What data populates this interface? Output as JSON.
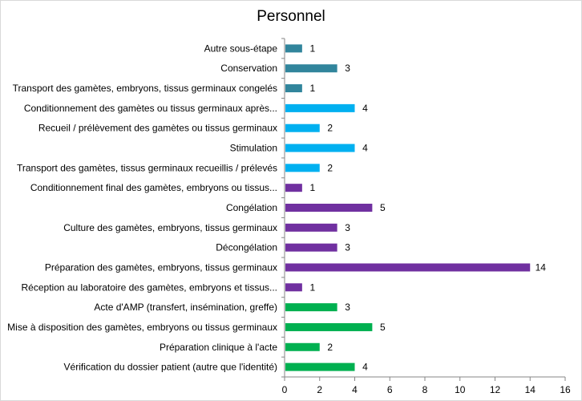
{
  "chart_data": {
    "type": "bar",
    "orientation": "horizontal",
    "title": "Personnel",
    "xlabel": "",
    "ylabel": "",
    "xlim": [
      0,
      16
    ],
    "xticks": [
      0,
      2,
      4,
      6,
      8,
      10,
      12,
      14,
      16
    ],
    "grid": false,
    "legend": "none",
    "categories": [
      "Autre sous-étape",
      "Conservation",
      "Transport des gamètes, embryons, tissus germinaux congelés",
      "Conditionnement des gamètes ou tissus germinaux après...",
      "Recueil / prélèvement des gamètes ou tissus germinaux",
      "Stimulation",
      "Transport des gamètes, tissus germinaux recueillis / prélevés",
      "Conditionnement final des gamètes, embryons ou tissus...",
      "Congélation",
      "Culture des gamètes, embryons, tissus germinaux",
      "Décongélation",
      "Préparation des gamètes, embryons, tissus germinaux",
      "Réception au laboratoire des gamètes, embryons et tissus...",
      "Acte d'AMP (transfert, insémination, greffe)",
      "Mise à disposition des gamètes, embryons ou tissus germinaux",
      "Préparation clinique à l'acte",
      "Vérification du dossier patient (autre que l'identité)"
    ],
    "values": [
      1,
      3,
      1,
      4,
      2,
      4,
      2,
      1,
      5,
      3,
      3,
      14,
      1,
      3,
      5,
      2,
      4
    ],
    "colors": [
      "#31859c",
      "#31859c",
      "#31859c",
      "#00b0f0",
      "#00b0f0",
      "#00b0f0",
      "#00b0f0",
      "#7030a0",
      "#7030a0",
      "#7030a0",
      "#7030a0",
      "#7030a0",
      "#7030a0",
      "#00b050",
      "#00b050",
      "#00b050",
      "#00b050"
    ],
    "axis_color": "#868686"
  }
}
